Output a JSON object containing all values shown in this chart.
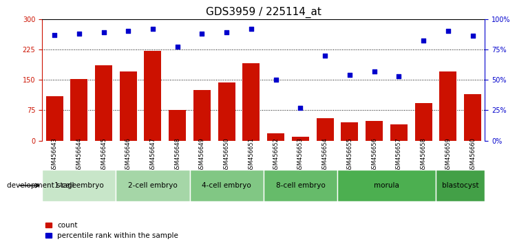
{
  "title": "GDS3959 / 225114_at",
  "samples": [
    "GSM456643",
    "GSM456644",
    "GSM456645",
    "GSM456646",
    "GSM456647",
    "GSM456648",
    "GSM456649",
    "GSM456650",
    "GSM456651",
    "GSM456652",
    "GSM456653",
    "GSM456654",
    "GSM456655",
    "GSM456656",
    "GSM456657",
    "GSM456658",
    "GSM456659",
    "GSM456660"
  ],
  "counts": [
    110,
    152,
    185,
    170,
    222,
    76,
    125,
    143,
    190,
    18,
    10,
    55,
    45,
    48,
    40,
    92,
    170,
    115
  ],
  "percentiles": [
    87,
    88,
    89,
    90,
    92,
    77,
    88,
    89,
    92,
    50,
    27,
    70,
    54,
    57,
    53,
    82,
    90,
    86
  ],
  "bar_color": "#cc1100",
  "dot_color": "#0000cc",
  "ylim_left": [
    0,
    300
  ],
  "ylim_right": [
    0,
    100
  ],
  "yticks_left": [
    0,
    75,
    150,
    225,
    300
  ],
  "yticks_right": [
    0,
    25,
    50,
    75,
    100
  ],
  "ytick_labels_right": [
    "0%",
    "25%",
    "50%",
    "75%",
    "100%"
  ],
  "stages": [
    {
      "label": "1-cell embryo",
      "start": 0,
      "end": 2,
      "color": "#c8e6c9"
    },
    {
      "label": "2-cell embryo",
      "start": 3,
      "end": 5,
      "color": "#a5d6a7"
    },
    {
      "label": "4-cell embryo",
      "start": 6,
      "end": 8,
      "color": "#81c784"
    },
    {
      "label": "8-cell embryo",
      "start": 9,
      "end": 11,
      "color": "#66bb6a"
    },
    {
      "label": "morula",
      "start": 12,
      "end": 15,
      "color": "#4caf50"
    },
    {
      "label": "blastocyst",
      "start": 16,
      "end": 17,
      "color": "#43a047"
    }
  ],
  "development_stage_label": "development stage",
  "legend_count_label": "count",
  "legend_percentile_label": "percentile rank within the sample",
  "left_tick_color": "#cc1100",
  "right_tick_color": "#0000cc",
  "title_fontsize": 11,
  "tick_fontsize": 7,
  "xtick_fontsize": 6
}
